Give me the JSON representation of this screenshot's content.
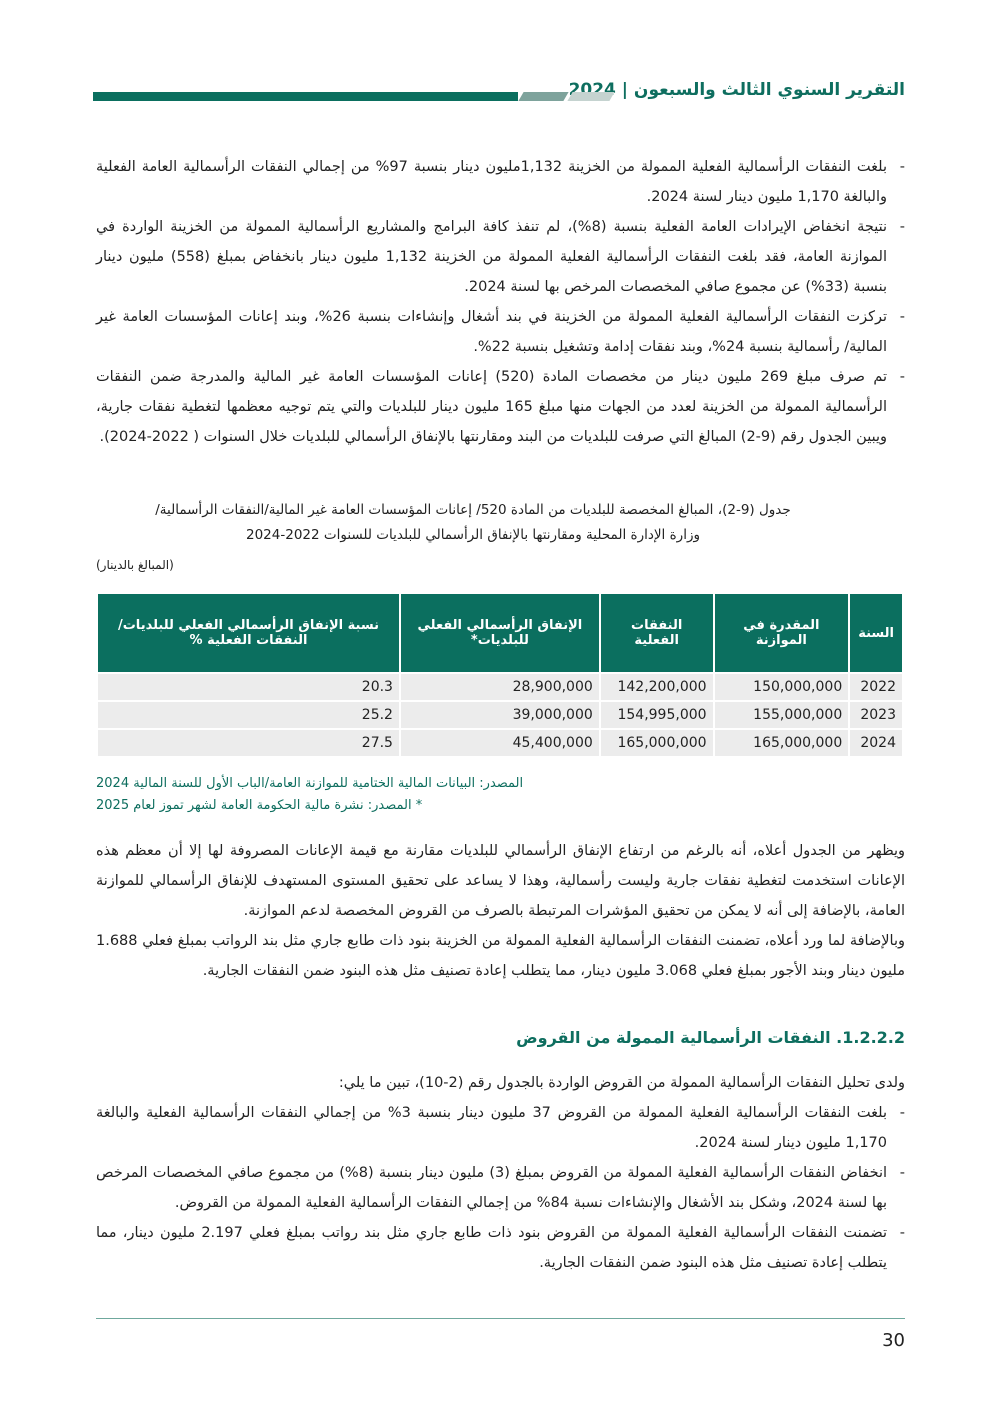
{
  "header": {
    "title": "التقرير السنوي الثالث والسبعون | 2024"
  },
  "bullets1": [
    "بلغت النفقات الرأسمالية الفعلية الممولة من الخزينة 1,132مليون دينار بنسبة 97% من إجمالي النفقات الرأسمالية العامة الفعلية والبالغة 1,170 مليون دينار لسنة 2024.",
    "نتيجة انخفاض الإيرادات العامة الفعلية بنسبة (8%)، لم تنفذ كافة البرامج والمشاريع الرأسمالية الممولة من الخزينة الواردة في الموازنة العامة، فقد بلغت النفقات الرأسمالية الفعلية الممولة من الخزينة 1,132 مليون دينار بانخفاض بمبلغ (558) مليون دينار بنسبة (33%) عن مجموع صافي المخصصات المرخص بها لسنة 2024.",
    "تركزت النفقات الرأسمالية الفعلية الممولة من الخزينة في بند أشغال وإنشاءات بنسبة 26%، وبند إعانات المؤسسات العامة غير المالية/ رأسمالية بنسبة 24%، وبند نفقات إدامة وتشغيل بنسبة 22%.",
    "تم صرف مبلغ 269 مليون دينار من مخصصات المادة (520) إعانات المؤسسات العامة غير المالية والمدرجة ضمن النفقات الرأسمالية الممولة من الخزينة لعدد من الجهات منها مبلغ 165 مليون دينار للبلديات والتي يتم توجيه معظمها لتغطية نفقات جارية، ويبين الجدول رقم (9-2) المبالغ التي صرفت للبلديات من البند ومقارنتها بالإنفاق الرأسمالي للبلديات خلال السنوات ( 2022-2024)."
  ],
  "table": {
    "caption1": "جدول (9-2)، المبالغ المخصصة للبلديات من المادة 520/ إعانات المؤسسات العامة غير المالية/النفقات الرأسمالية/",
    "caption2": "وزارة الإدارة المحلية ومقارنتها بالإنفاق الرأسمالي للبلديات للسنوات 2022-2024",
    "unit": "(المبالغ بالدينار)",
    "headers": [
      "السنة",
      "المقدرة في الموازنة",
      "النفقات الفعلية",
      "الإنفاق الرأسمالي الفعلي للبلديات*",
      "نسبة الإنفاق الرأسمالي الفعلي للبلديات/النفقات الفعلية %"
    ],
    "rows": [
      [
        "2022",
        "150,000,000",
        "142,200,000",
        "28,900,000",
        "20.3"
      ],
      [
        "2023",
        "155,000,000",
        "154,995,000",
        "39,000,000",
        "25.2"
      ],
      [
        "2024",
        "165,000,000",
        "165,000,000",
        "45,400,000",
        "27.5"
      ]
    ],
    "source1": "المصدر: البيانات المالية الختامية للموازنة العامة/الباب الأول للسنة المالية 2024",
    "source2": "* المصدر: نشرة مالية الحكومة العامة لشهر تموز لعام 2025"
  },
  "para1": "ويظهر من الجدول أعلاه، أنه بالرغم من ارتفاع الإنفاق الرأسمالي للبلديات مقارنة مع قيمة الإعانات المصروفة لها إلا أن معظم هذه الإعانات استخدمت لتغطية نفقات جارية وليست رأسمالية، وهذا لا يساعد على تحقيق المستوى المستهدف للإنفاق الرأسمالي للموازنة العامة، بالإضافة إلى أنه لا يمكن من تحقيق المؤشرات المرتبطة بالصرف من القروض المخصصة لدعم الموازنة.",
  "para2": "وبالإضافة لما ورد أعلاه، تضمنت النفقات الرأسمالية الفعلية الممولة من الخزينة بنود ذات طابع جاري مثل بند الرواتب بمبلغ فعلي 1.688 مليون دينار وبند الأجور بمبلغ فعلي 3.068 مليون دينار، مما يتطلب إعادة تصنيف مثل هذه البنود ضمن النفقات الجارية.",
  "section_title": "1.2.2.2. النفقات الرأسمالية الممولة من القروض",
  "para3": "ولدى تحليل النفقات الرأسمالية الممولة من القروض الواردة بالجدول رقم (2-10)، تبين ما يلي:",
  "bullets2": [
    "بلغت النفقات الرأسمالية الفعلية الممولة من القروض 37 مليون دينار بنسبة 3% من إجمالي النفقات الرأسمالية الفعلية والبالغة 1,170 مليون دينار لسنة 2024.",
    "انخفاض النفقات الرأسمالية الفعلية الممولة من القروض بمبلغ (3) مليون دينار بنسبة (8%) من مجموع صافي المخصصات المرخص بها لسنة 2024، وشكل بند الأشغال والإنشاءات نسبة 84% من إجمالي النفقات الرأسمالية الفعلية الممولة من القروض.",
    "تضمنت النفقات الرأسمالية الفعلية الممولة من القروض بنود ذات طابع جاري مثل بند رواتب بمبلغ فعلي 2.197 مليون دينار، مما يتطلب إعادة تصنيف مثل هذه البنود ضمن النفقات الجارية."
  ],
  "page_number": "30"
}
